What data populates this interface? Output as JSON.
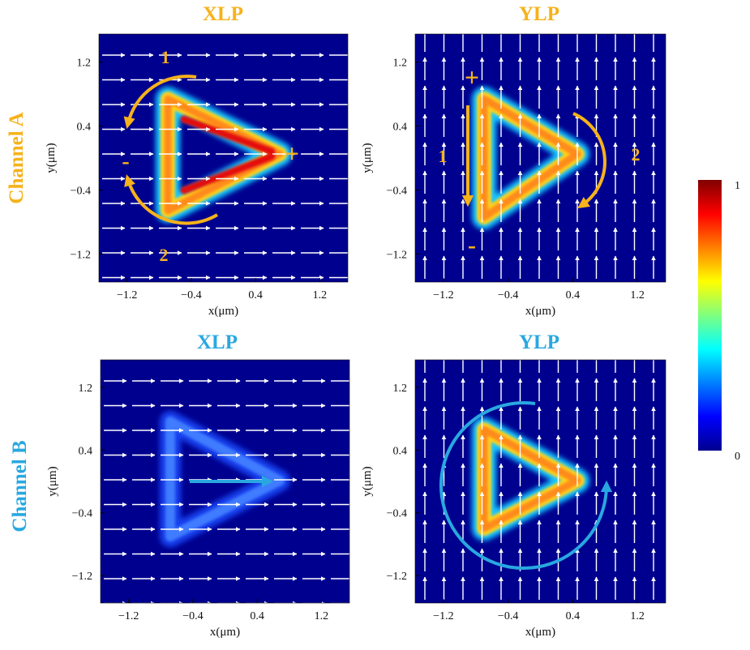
{
  "colors": {
    "orange": "#f6b21a",
    "blue": "#29a8e0",
    "background": "#00008f",
    "field_arrow": "#ffffff"
  },
  "panels": [
    {
      "title": "XLP",
      "title_color": "#f6b21a",
      "field": "x",
      "intensity": 0.95,
      "thickness": 0.12,
      "red_side": "upper-lower",
      "annotations": {
        "label_1": "1",
        "label_2": "2",
        "plus": "+",
        "minus": "-"
      }
    },
    {
      "title": "YLP",
      "title_color": "#f6b21a",
      "field": "y",
      "intensity": 0.95,
      "thickness": 0.13,
      "red_side": "left",
      "annotations": {
        "label_1": "1",
        "label_2": "2",
        "plus": "+",
        "minus": "-"
      }
    },
    {
      "title": "XLP",
      "title_color": "#29a8e0",
      "field": "x",
      "intensity": 0.25,
      "thickness": 0.12,
      "red_side": "none",
      "annotations": {}
    },
    {
      "title": "YLP",
      "title_color": "#29a8e0",
      "field": "y",
      "intensity": 0.9,
      "thickness": 0.12,
      "red_side": "left",
      "annotations": {}
    }
  ],
  "row_labels": {
    "channel_a": "Channel A",
    "channel_b": "Channel B"
  },
  "axes": {
    "x_label": "x(μm)",
    "y_label": "y(μm)",
    "ticks": [
      -1.2,
      -0.4,
      0.4,
      1.2
    ],
    "tick_labels": [
      "−1.2",
      "−0.4",
      "0.4",
      "1.2"
    ],
    "range": [
      -1.55,
      1.55
    ]
  },
  "colorbar": {
    "max_label": "1",
    "min_label": "0",
    "range": [
      0,
      1
    ],
    "colormap": "jet"
  }
}
